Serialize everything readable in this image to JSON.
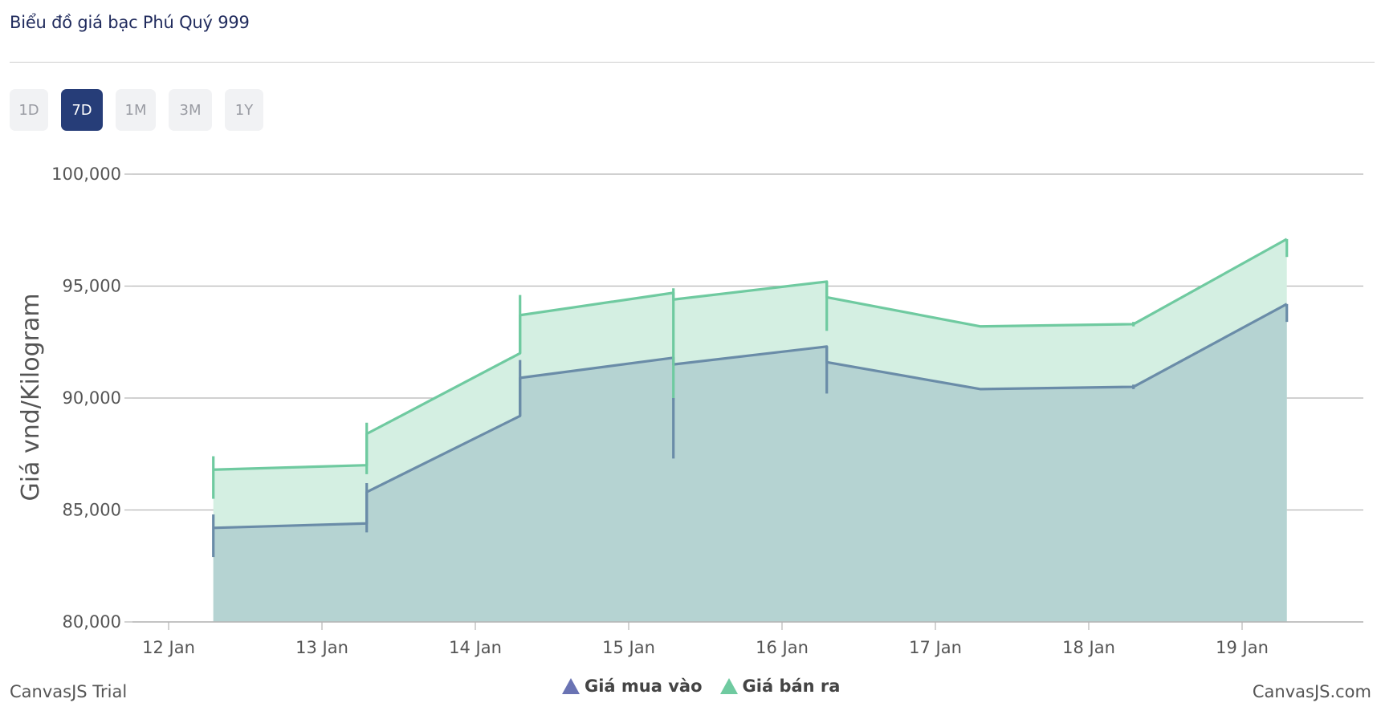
{
  "page": {
    "title": "Biểu đồ giá bạc Phú Quý 999"
  },
  "range_buttons": [
    {
      "label": "1D",
      "active": false
    },
    {
      "label": "7D",
      "active": true
    },
    {
      "label": "1M",
      "active": false
    },
    {
      "label": "3M",
      "active": false
    },
    {
      "label": "1Y",
      "active": false
    }
  ],
  "footer": {
    "trial_text": "CanvasJS Trial",
    "credit_text": "CanvasJS.com"
  },
  "colors": {
    "buy": "#6a8ca8",
    "buy_fill": "#b5d3d2",
    "sell": "#6fcaa0",
    "sell_fill": "#d4efe2",
    "grid": "#b5b5b5",
    "legend_buy_marker": "#6a73b3",
    "legend_sell_marker": "#6fcaa0",
    "active_button": "#263d78"
  },
  "chart_data": {
    "type": "area",
    "ylabel": "Giá vnd/Kilogram",
    "xlabel": "",
    "ylim": [
      80000,
      100000
    ],
    "y_ticks": [
      "80,000",
      "85,000",
      "90,000",
      "95,000",
      "100,000"
    ],
    "x_ticks": [
      "12 Jan",
      "13 Jan",
      "14 Jan",
      "15 Jan",
      "16 Jan",
      "17 Jan",
      "18 Jan",
      "19 Jan"
    ],
    "grid": true,
    "legend_position": "bottom-center",
    "series": [
      {
        "name": "Giá mua vào",
        "points": [
          {
            "x": "12 Jan 07:00",
            "y": 84200
          },
          {
            "x": "13 Jan 07:00",
            "y": 84400
          },
          {
            "x": "13 Jan 07:00",
            "y": 85800
          },
          {
            "x": "14 Jan 07:00",
            "y": 89200
          },
          {
            "x": "14 Jan 07:00",
            "y": 90900
          },
          {
            "x": "15 Jan 07:00",
            "y": 91800
          },
          {
            "x": "15 Jan 07:00",
            "y": 91500
          },
          {
            "x": "16 Jan 07:00",
            "y": 92300
          },
          {
            "x": "16 Jan 07:00",
            "y": 91600
          },
          {
            "x": "17 Jan 07:00",
            "y": 90400
          },
          {
            "x": "18 Jan 07:00",
            "y": 90500
          },
          {
            "x": "19 Jan 07:00",
            "y": 94200
          }
        ],
        "vertical_ticks": [
          {
            "x": "12 Jan 07:00",
            "low": 82900,
            "high": 84800
          },
          {
            "x": "13 Jan 07:00",
            "low": 84000,
            "high": 86200
          },
          {
            "x": "14 Jan 07:00",
            "low": 89200,
            "high": 91700
          },
          {
            "x": "15 Jan 07:00",
            "low": 87300,
            "high": 90000
          },
          {
            "x": "16 Jan 07:00",
            "low": 90200,
            "high": 92300
          },
          {
            "x": "18 Jan 07:00",
            "low": 90400,
            "high": 90600
          },
          {
            "x": "19 Jan 07:00",
            "low": 93400,
            "high": 94200
          }
        ]
      },
      {
        "name": "Giá bán ra",
        "points": [
          {
            "x": "12 Jan 07:00",
            "y": 86800
          },
          {
            "x": "13 Jan 07:00",
            "y": 87000
          },
          {
            "x": "13 Jan 07:00",
            "y": 88400
          },
          {
            "x": "14 Jan 07:00",
            "y": 92000
          },
          {
            "x": "14 Jan 07:00",
            "y": 93700
          },
          {
            "x": "15 Jan 07:00",
            "y": 94700
          },
          {
            "x": "15 Jan 07:00",
            "y": 94400
          },
          {
            "x": "16 Jan 07:00",
            "y": 95200
          },
          {
            "x": "16 Jan 07:00",
            "y": 94500
          },
          {
            "x": "17 Jan 07:00",
            "y": 93200
          },
          {
            "x": "18 Jan 07:00",
            "y": 93300
          },
          {
            "x": "19 Jan 07:00",
            "y": 97100
          }
        ],
        "vertical_ticks": [
          {
            "x": "12 Jan 07:00",
            "low": 85500,
            "high": 87400
          },
          {
            "x": "13 Jan 07:00",
            "low": 86600,
            "high": 88900
          },
          {
            "x": "14 Jan 07:00",
            "low": 92000,
            "high": 94600
          },
          {
            "x": "15 Jan 07:00",
            "low": 89900,
            "high": 94900
          },
          {
            "x": "16 Jan 07:00",
            "low": 93000,
            "high": 95200
          },
          {
            "x": "18 Jan 07:00",
            "low": 93200,
            "high": 93400
          },
          {
            "x": "19 Jan 07:00",
            "low": 96300,
            "high": 97100
          }
        ]
      }
    ]
  }
}
